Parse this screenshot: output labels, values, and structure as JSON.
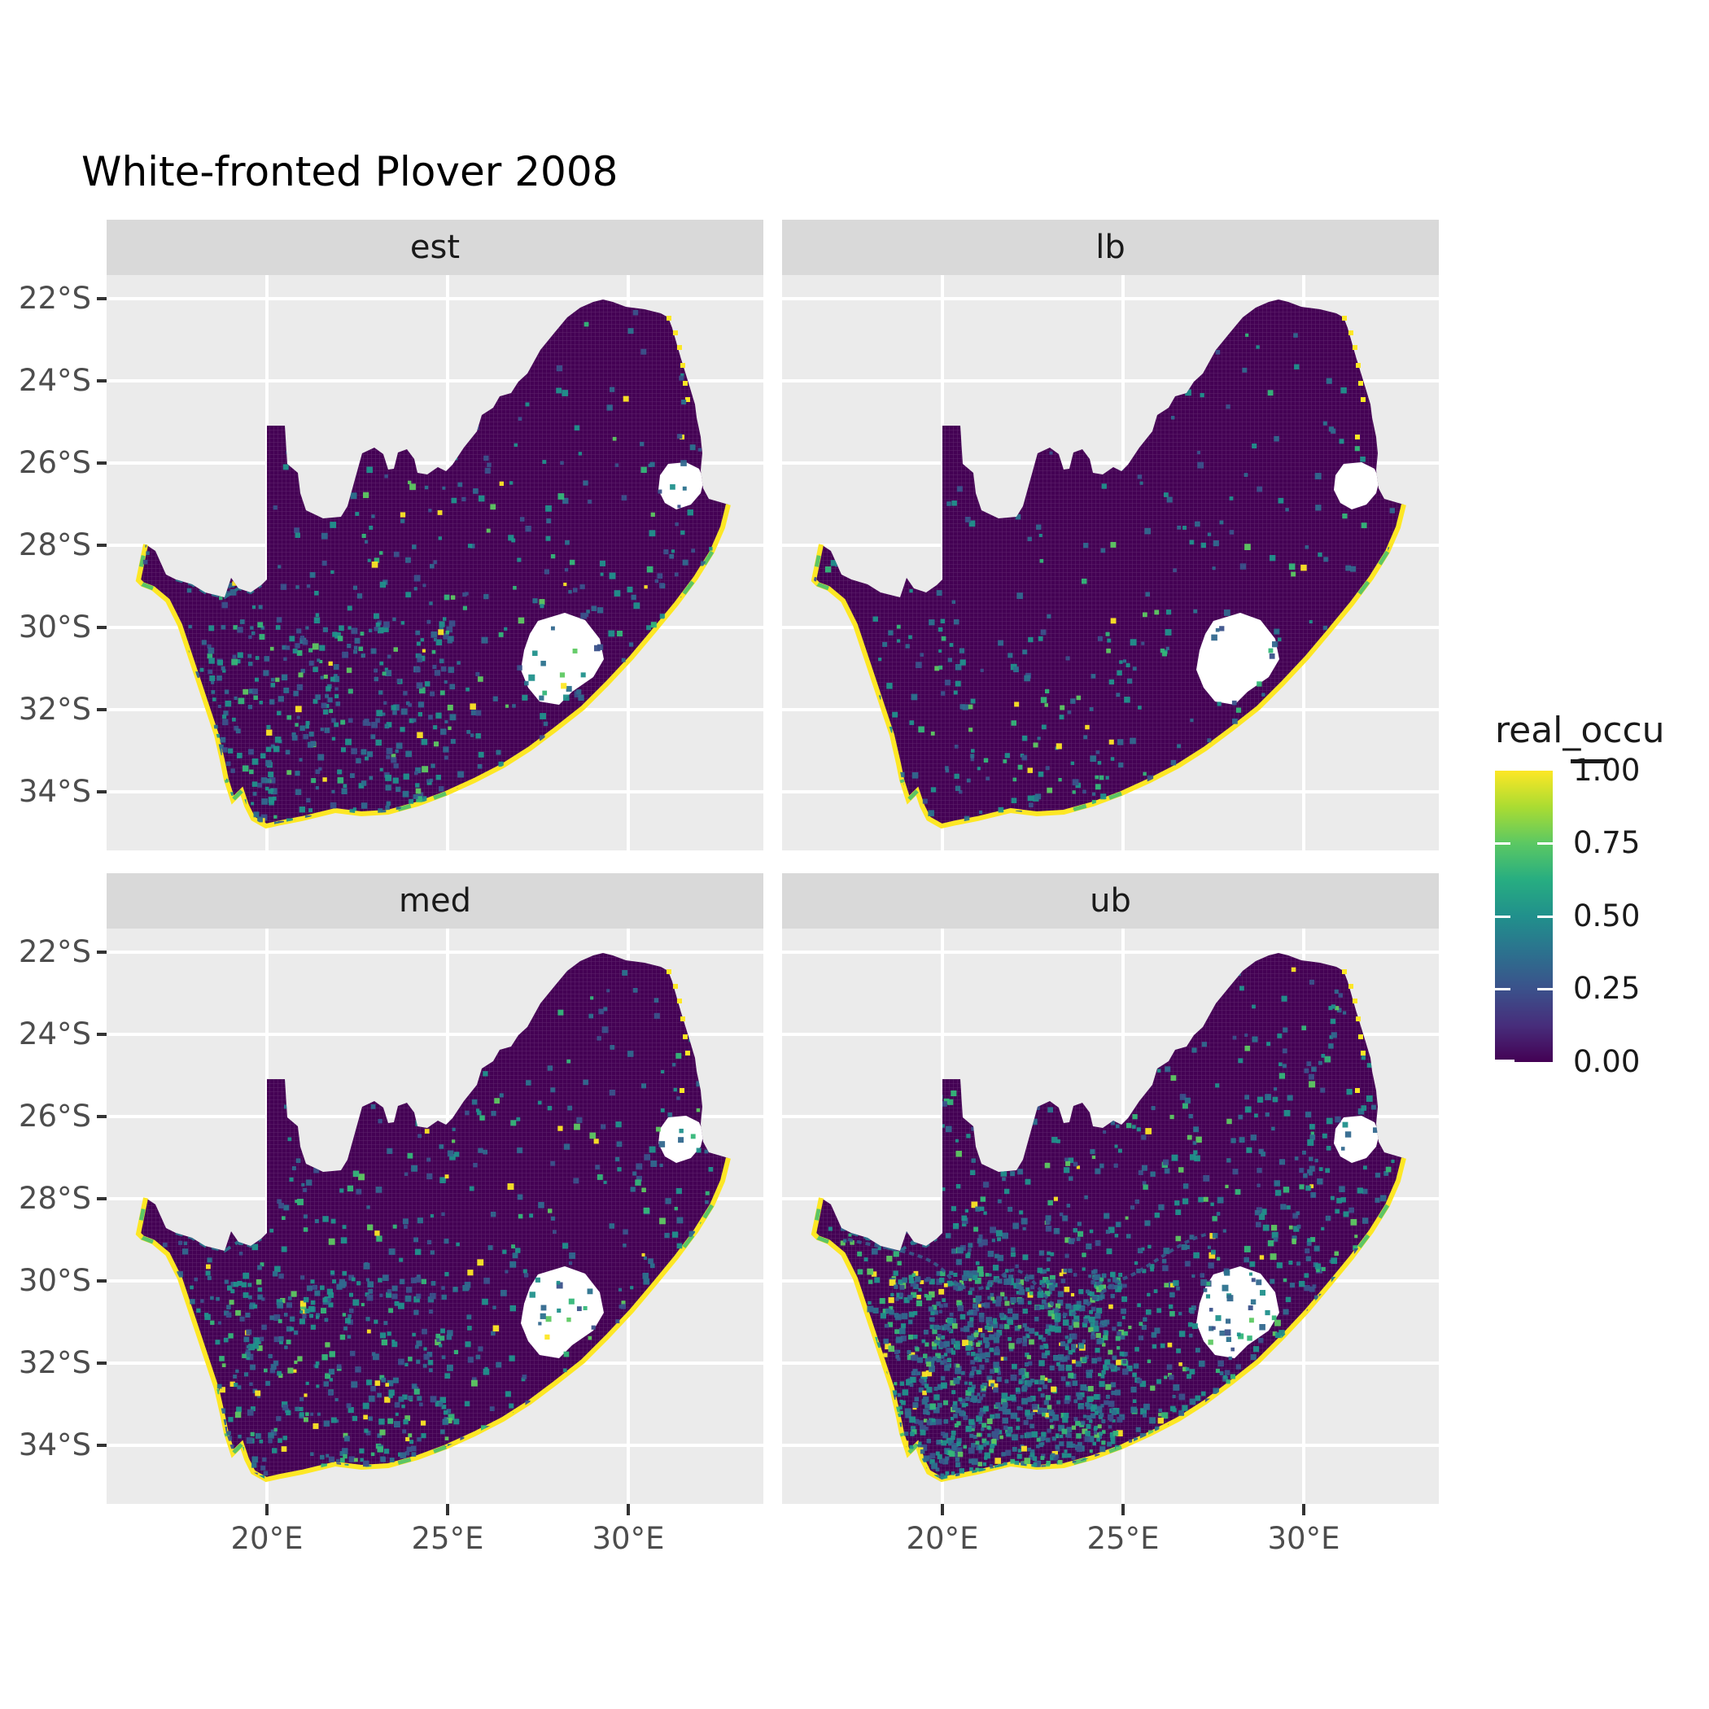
{
  "title": "White-fronted Plover 2008",
  "facets": [
    {
      "label": "est"
    },
    {
      "label": "lb"
    },
    {
      "label": "med"
    },
    {
      "label": "ub"
    }
  ],
  "axes": {
    "y_labels": [
      "22°S",
      "24°S",
      "26°S",
      "28°S",
      "30°S",
      "32°S",
      "34°S"
    ],
    "x_labels": [
      "20°E",
      "25°E",
      "30°E"
    ]
  },
  "legend": {
    "title": "real_occu",
    "labels": [
      "1.00",
      "0.75",
      "0.50",
      "0.25",
      "0.00"
    ]
  },
  "colors": {
    "background": "#FFFFFF",
    "panel_bg": "#EBEBEB",
    "strip_bg": "#D9D9D9",
    "gridline": "#FFFFFF",
    "map_base": "#440154",
    "coast_high": "#FDE725",
    "na_fill": "#FFFFFF",
    "axis_text": "#4D4D4D",
    "tick": "#333333",
    "text": "#1A1A1A",
    "viridis": [
      "#440154",
      "#472D7B",
      "#3B518B",
      "#2C718E",
      "#21908C",
      "#27AD81",
      "#5BC863",
      "#AADC32",
      "#FDE725"
    ]
  },
  "chart_data": {
    "type": "heatmap",
    "subtype": "faceted raster occupancy map",
    "title": "White-fronted Plover 2008",
    "region": "South Africa (Lesotho and Eswatini shown as white NA holes)",
    "facet_labels": [
      "est",
      "lb",
      "med",
      "ub"
    ],
    "x": {
      "tick_labels": [
        "20°E",
        "25°E",
        "30°E"
      ],
      "range_lon_deg_E": [
        15.6,
        33.7
      ],
      "grid": true
    },
    "y": {
      "tick_labels": [
        "22°S",
        "24°S",
        "26°S",
        "28°S",
        "30°S",
        "32°S",
        "34°S"
      ],
      "range_lat_deg_S": [
        21.4,
        35.3
      ],
      "grid": true
    },
    "legend": {
      "title": "real_occu",
      "breaks": [
        1.0,
        0.75,
        0.5,
        0.25,
        0.0
      ],
      "range": [
        0,
        1
      ],
      "palette": "viridis",
      "position": "right"
    },
    "value_summary": "Most raster cells are near 0 (dark purple). Cells near 1 (yellow) trace the entire coastline; green/teal intermediate cells sit just inland of the coast, along the Orange River on the NW border, and at scattered wetlands; yellow dots line the NE (Kruger) border. Interior speckle density: lb < est ≈ med < ub (ub shows many teal cells and river traces across the southwest).",
    "facets": [
      {
        "label": "est",
        "seed": 11,
        "speckle_attempts": 700,
        "sw_cluster_attempts": 260,
        "orange_river_line": true,
        "river_trace": false
      },
      {
        "label": "lb",
        "seed": 22,
        "speckle_attempts": 380,
        "sw_cluster_attempts": 80,
        "orange_river_line": false,
        "river_trace": false
      },
      {
        "label": "med",
        "seed": 33,
        "speckle_attempts": 750,
        "sw_cluster_attempts": 300,
        "orange_river_line": true,
        "river_trace": false
      },
      {
        "label": "ub",
        "seed": 44,
        "speckle_attempts": 1500,
        "sw_cluster_attempts": 900,
        "orange_river_line": true,
        "river_trace": true
      }
    ]
  }
}
